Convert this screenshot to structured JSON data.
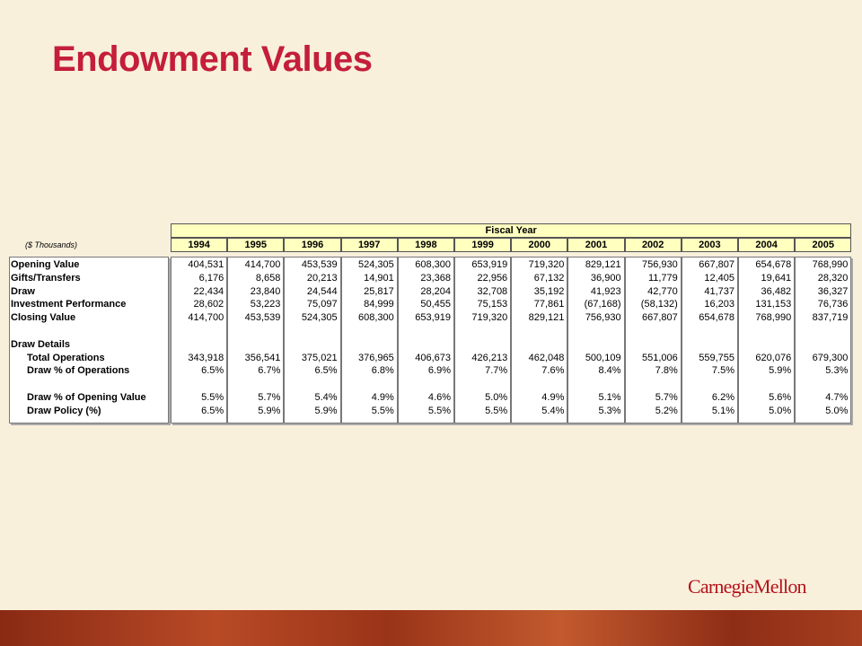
{
  "header": {
    "title": "Endowment Values"
  },
  "table": {
    "group_header": "Fiscal Year",
    "units": "($ Thousands)",
    "years": [
      "1994",
      "1995",
      "1996",
      "1997",
      "1998",
      "1999",
      "2000",
      "2001",
      "2002",
      "2003",
      "2004",
      "2005"
    ],
    "groups": [
      {
        "rows": [
          {
            "label": "Opening Value",
            "values": [
              "404,531",
              "414,700",
              "453,539",
              "524,305",
              "608,300",
              "653,919",
              "719,320",
              "829,121",
              "756,930",
              "667,807",
              "654,678",
              "768,990"
            ]
          },
          {
            "label": "Gifts/Transfers",
            "values": [
              "6,176",
              "8,658",
              "20,213",
              "14,901",
              "23,368",
              "22,956",
              "67,132",
              "36,900",
              "11,779",
              "12,405",
              "19,641",
              "28,320"
            ]
          },
          {
            "label": "Draw",
            "values": [
              "22,434",
              "23,840",
              "24,544",
              "25,817",
              "28,204",
              "32,708",
              "35,192",
              "41,923",
              "42,770",
              "41,737",
              "36,482",
              "36,327"
            ]
          },
          {
            "label": "Investment Performance",
            "values": [
              "28,602",
              "53,223",
              "75,097",
              "84,999",
              "50,455",
              "75,153",
              "77,861",
              "(67,168)",
              "(58,132)",
              "16,203",
              "131,153",
              "76,736"
            ]
          },
          {
            "label": "Closing Value",
            "values": [
              "414,700",
              "453,539",
              "524,305",
              "608,300",
              "653,919",
              "719,320",
              "829,121",
              "756,930",
              "667,807",
              "654,678",
              "768,990",
              "837,719"
            ]
          }
        ]
      },
      {
        "heading": "Draw Details",
        "rows": [
          {
            "label": "Total Operations",
            "values": [
              "343,918",
              "356,541",
              "375,021",
              "376,965",
              "406,673",
              "426,213",
              "462,048",
              "500,109",
              "551,006",
              "559,755",
              "620,076",
              "679,300"
            ]
          },
          {
            "label": "Draw % of Operations",
            "values": [
              "6.5%",
              "6.7%",
              "6.5%",
              "6.8%",
              "6.9%",
              "7.7%",
              "7.6%",
              "8.4%",
              "7.8%",
              "7.5%",
              "5.9%",
              "5.3%"
            ]
          }
        ]
      },
      {
        "rows": [
          {
            "label": "Draw % of Opening Value",
            "values": [
              "5.5%",
              "5.7%",
              "5.4%",
              "4.9%",
              "4.6%",
              "5.0%",
              "4.9%",
              "5.1%",
              "5.7%",
              "6.2%",
              "5.6%",
              "4.7%"
            ]
          },
          {
            "label": "Draw Policy (%)",
            "values": [
              "6.5%",
              "5.9%",
              "5.9%",
              "5.5%",
              "5.5%",
              "5.5%",
              "5.4%",
              "5.3%",
              "5.2%",
              "5.1%",
              "5.0%",
              "5.0%"
            ]
          }
        ]
      }
    ]
  },
  "footer": {
    "logo": "CarnegieMellon"
  }
}
